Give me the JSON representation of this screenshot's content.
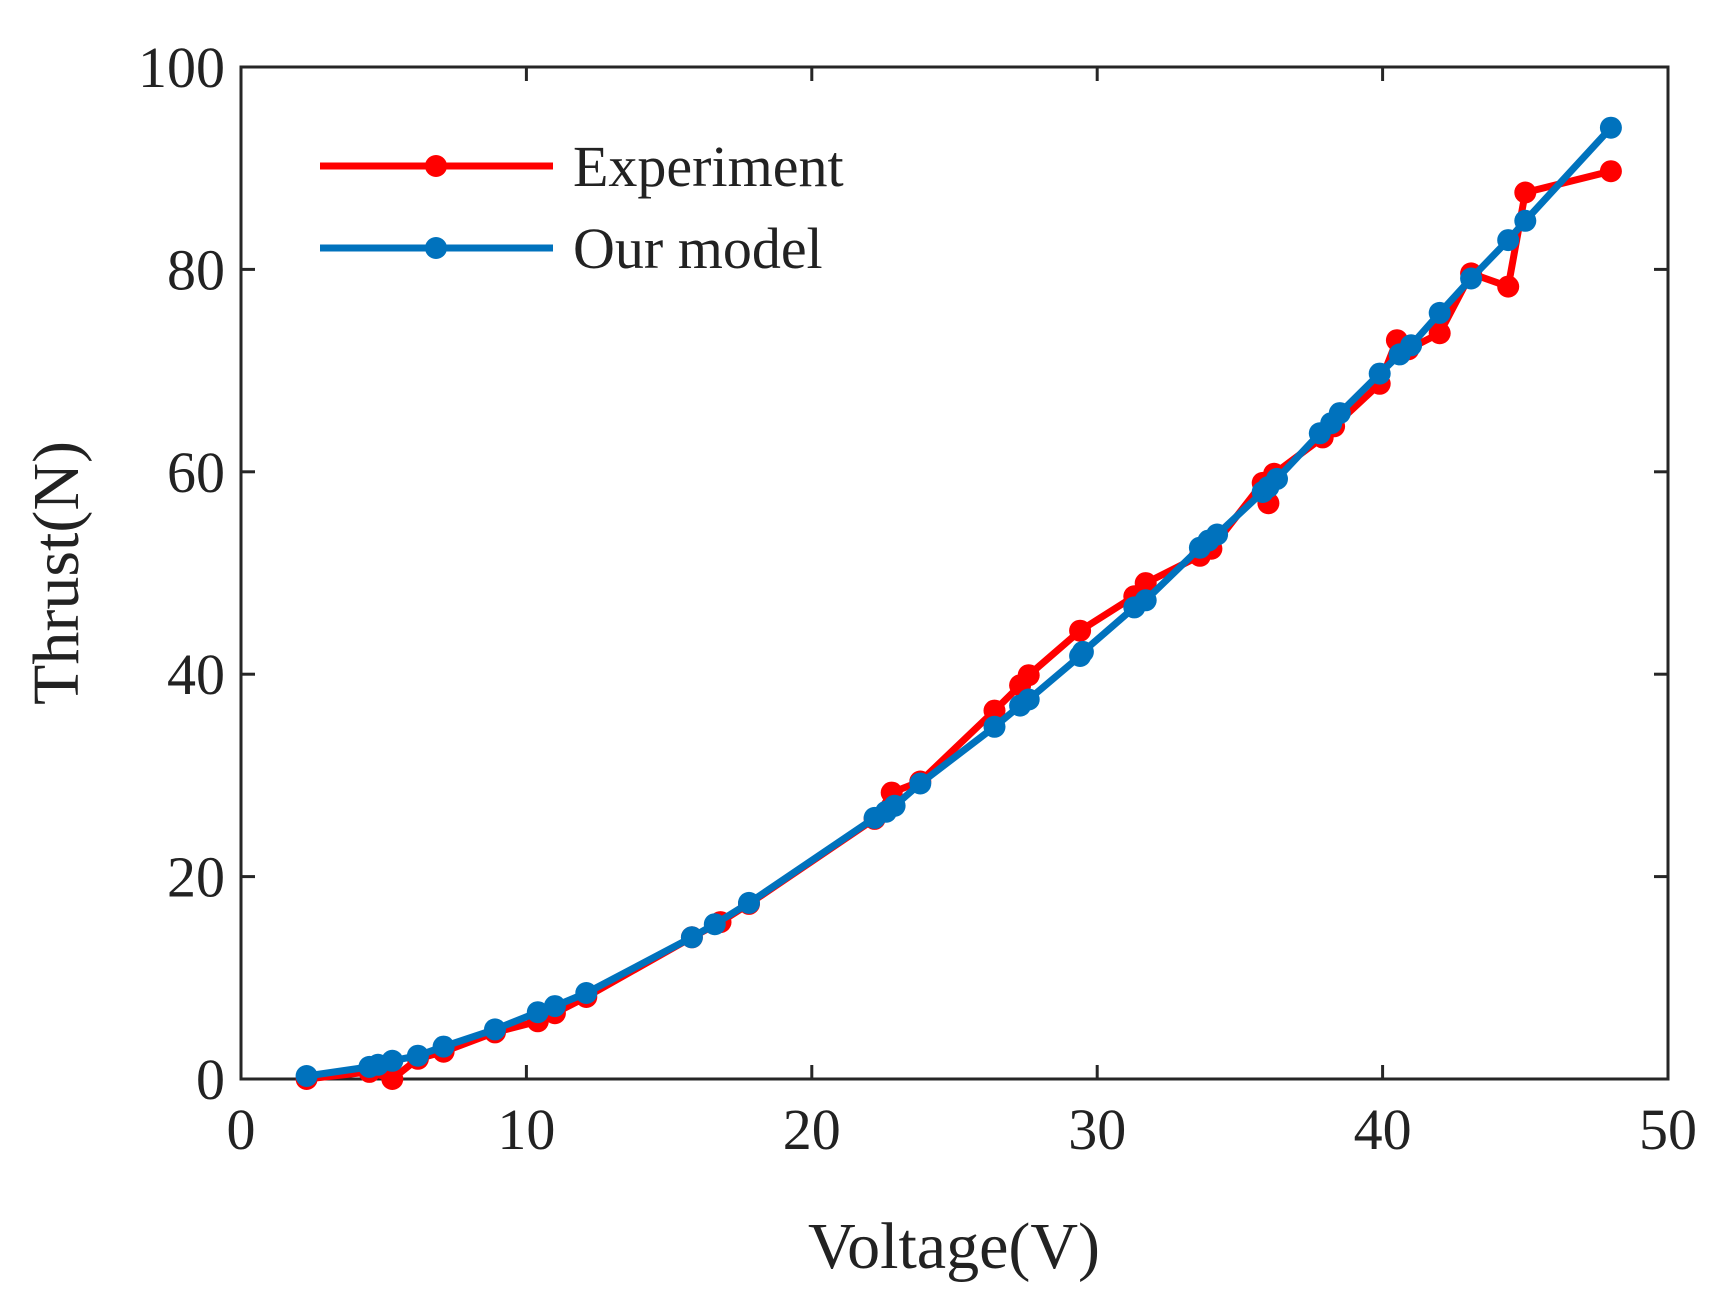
{
  "chart_data": {
    "type": "line",
    "title": "",
    "xlabel": "Voltage(V)",
    "ylabel": "Thrust(N)",
    "xlim": [
      0,
      50
    ],
    "ylim": [
      0,
      100
    ],
    "xticks": [
      0,
      10,
      20,
      30,
      40,
      50
    ],
    "yticks": [
      0,
      20,
      40,
      60,
      80,
      100
    ],
    "grid": false,
    "legend_position": "top-left",
    "series": [
      {
        "name": "Experiment",
        "color": "#ff0000",
        "marker": "circle",
        "x": [
          2.3,
          4.5,
          5.3,
          6.2,
          7.1,
          8.9,
          10.4,
          11.0,
          12.1,
          15.8,
          16.8,
          17.8,
          22.2,
          22.8,
          23.8,
          26.4,
          27.3,
          27.6,
          29.4,
          31.3,
          31.7,
          33.6,
          34.0,
          35.8,
          36.0,
          36.2,
          37.9,
          38.3,
          39.9,
          40.5,
          40.9,
          42.0,
          43.1,
          44.4,
          45.0,
          48.0
        ],
        "y": [
          0.0,
          0.7,
          0.0,
          2.0,
          2.7,
          4.6,
          5.7,
          6.5,
          8.1,
          14.0,
          15.5,
          17.3,
          25.7,
          28.3,
          29.4,
          36.4,
          38.9,
          39.9,
          44.3,
          47.7,
          49.0,
          51.7,
          52.4,
          58.9,
          56.9,
          59.8,
          63.4,
          64.5,
          68.7,
          73.0,
          72.1,
          73.7,
          79.6,
          78.3,
          87.6,
          89.7
        ]
      },
      {
        "name": "Our model",
        "color": "#0072bd",
        "marker": "circle",
        "x": [
          2.3,
          4.5,
          4.8,
          5.3,
          6.2,
          7.1,
          8.9,
          10.4,
          11.0,
          12.1,
          15.8,
          16.6,
          17.8,
          22.2,
          22.6,
          22.9,
          23.8,
          26.4,
          27.3,
          27.6,
          29.4,
          29.5,
          31.3,
          31.7,
          33.6,
          33.9,
          34.2,
          35.8,
          36.0,
          36.3,
          37.8,
          38.2,
          38.5,
          39.9,
          40.6,
          41.0,
          42.0,
          43.1,
          44.4,
          45.0,
          48.0
        ],
        "y": [
          0.3,
          1.2,
          1.4,
          1.8,
          2.3,
          3.2,
          4.9,
          6.6,
          7.2,
          8.5,
          14.0,
          15.3,
          17.4,
          25.8,
          26.4,
          27.0,
          29.2,
          34.8,
          36.9,
          37.5,
          41.8,
          42.2,
          46.6,
          47.3,
          52.5,
          53.2,
          53.8,
          58.0,
          58.5,
          59.3,
          63.8,
          64.8,
          65.8,
          69.7,
          71.6,
          72.5,
          75.7,
          79.1,
          82.9,
          84.8,
          94.0
        ]
      }
    ]
  }
}
